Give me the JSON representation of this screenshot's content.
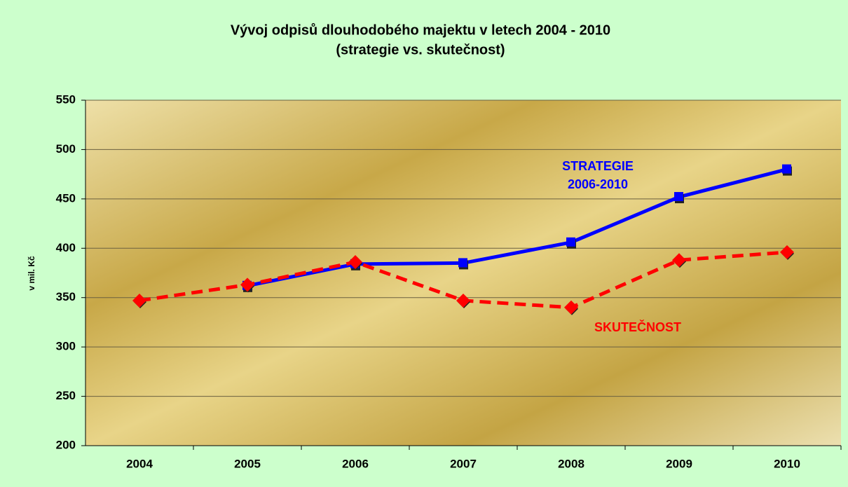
{
  "chart_data": {
    "type": "line",
    "title": "Vývoj odpisů dlouhodobého majektu v letech 2004 - 2010",
    "subtitle": "(strategie vs. skutečnost)",
    "y_label": "v mil. Kč",
    "categories": [
      "2004",
      "2005",
      "2006",
      "2007",
      "2008",
      "2009",
      "2010"
    ],
    "series": [
      {
        "color": "#0000ff",
        "marker": "square",
        "dash": false,
        "values": [
          null,
          362,
          384,
          385,
          406,
          452,
          480
        ]
      },
      {
        "color": "#ff0000",
        "marker": "diamond",
        "dash": true,
        "values": [
          347,
          363,
          386,
          347,
          340,
          388,
          396
        ]
      }
    ],
    "annotations": [
      {
        "lines": [
          "STRATEGIE",
          "2006-2010"
        ],
        "series": 0
      },
      {
        "lines": [
          "SKUTEČNOST"
        ],
        "series": 1
      }
    ],
    "ylim": [
      200,
      550
    ],
    "yticks": [
      200,
      250,
      300,
      350,
      400,
      450,
      500,
      550
    ],
    "grid": true
  }
}
